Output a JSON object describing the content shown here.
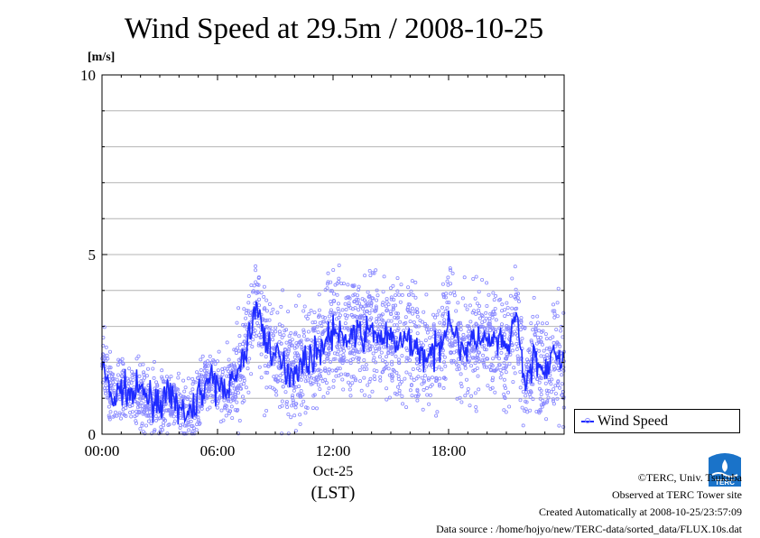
{
  "chart_data": {
    "type": "scatter",
    "title": "Wind Speed at 29.5m / 2008-10-25",
    "ylabel": "[m/s]",
    "ylim": [
      0,
      10
    ],
    "y_ticks": [
      {
        "value": 0,
        "label": "0"
      },
      {
        "value": 5,
        "label": "5"
      },
      {
        "value": 10,
        "label": "10"
      }
    ],
    "gridlines_y": [
      1,
      2,
      3,
      4,
      5,
      6,
      7,
      8,
      9
    ],
    "xlim_hours": [
      0,
      24
    ],
    "x_ticks": [
      {
        "hour": 0,
        "label": "00:00"
      },
      {
        "hour": 6,
        "label": "06:00"
      },
      {
        "hour": 12,
        "label": "12:00"
      },
      {
        "hour": 18,
        "label": "18:00"
      }
    ],
    "x_date_label": "Oct-25",
    "x_timezone_label": "(LST)",
    "series": [
      {
        "name": "Wind Speed",
        "color": "#1f2bff",
        "scatter_color": "#8a8aff",
        "mean_hourly": [
          {
            "h": 0.0,
            "v": 2.0
          },
          {
            "h": 0.3,
            "v": 1.3
          },
          {
            "h": 0.6,
            "v": 0.9
          },
          {
            "h": 1.0,
            "v": 1.3
          },
          {
            "h": 1.5,
            "v": 1.1
          },
          {
            "h": 2.0,
            "v": 1.2
          },
          {
            "h": 2.5,
            "v": 1.0
          },
          {
            "h": 3.0,
            "v": 0.9
          },
          {
            "h": 3.5,
            "v": 1.0
          },
          {
            "h": 4.0,
            "v": 0.8
          },
          {
            "h": 4.5,
            "v": 0.4
          },
          {
            "h": 5.0,
            "v": 1.1
          },
          {
            "h": 5.5,
            "v": 1.5
          },
          {
            "h": 6.0,
            "v": 1.3
          },
          {
            "h": 6.6,
            "v": 1.4
          },
          {
            "h": 7.0,
            "v": 1.5
          },
          {
            "h": 7.5,
            "v": 2.4
          },
          {
            "h": 8.0,
            "v": 3.6
          },
          {
            "h": 8.5,
            "v": 2.6
          },
          {
            "h": 9.0,
            "v": 2.2
          },
          {
            "h": 9.5,
            "v": 1.8
          },
          {
            "h": 10.0,
            "v": 1.8
          },
          {
            "h": 10.5,
            "v": 2.0
          },
          {
            "h": 11.0,
            "v": 2.2
          },
          {
            "h": 11.5,
            "v": 2.5
          },
          {
            "h": 12.0,
            "v": 2.9
          },
          {
            "h": 12.5,
            "v": 2.6
          },
          {
            "h": 13.0,
            "v": 2.8
          },
          {
            "h": 13.5,
            "v": 2.7
          },
          {
            "h": 14.0,
            "v": 2.9
          },
          {
            "h": 14.5,
            "v": 2.7
          },
          {
            "h": 15.0,
            "v": 2.6
          },
          {
            "h": 15.5,
            "v": 2.5
          },
          {
            "h": 16.0,
            "v": 2.6
          },
          {
            "h": 16.5,
            "v": 2.3
          },
          {
            "h": 17.0,
            "v": 2.1
          },
          {
            "h": 17.5,
            "v": 2.4
          },
          {
            "h": 18.0,
            "v": 3.3
          },
          {
            "h": 18.5,
            "v": 2.5
          },
          {
            "h": 19.0,
            "v": 2.4
          },
          {
            "h": 19.5,
            "v": 2.7
          },
          {
            "h": 20.0,
            "v": 2.5
          },
          {
            "h": 20.5,
            "v": 2.6
          },
          {
            "h": 21.0,
            "v": 2.3
          },
          {
            "h": 21.5,
            "v": 3.3
          },
          {
            "h": 22.0,
            "v": 1.3
          },
          {
            "h": 22.5,
            "v": 2.3
          },
          {
            "h": 23.0,
            "v": 1.5
          },
          {
            "h": 23.5,
            "v": 2.3
          },
          {
            "h": 24.0,
            "v": 2.0
          }
        ]
      }
    ],
    "legend_placement": "right, below plot area"
  },
  "credits": {
    "copyright": "©TERC, Univ. Tsukuba",
    "observed": "Observed at TERC Tower site",
    "created": "Created Automatically at 2008-10-25/23:57:09",
    "source": "Data source : /home/hojyo/new/TERC-data/sorted_data/FLUX.10s.dat"
  },
  "logo": {
    "text": "TERC",
    "color": "#1a73c9"
  }
}
